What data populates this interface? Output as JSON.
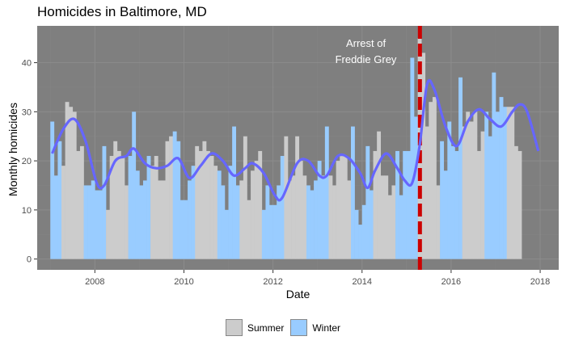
{
  "chart_data": {
    "type": "bar",
    "title": "Homicides in Baltimore, MD",
    "xlabel": "Date",
    "ylabel": "Monthly homicides",
    "xlim": [
      "2006-09-15",
      "2018-06-01"
    ],
    "ylim": [
      -2.2,
      47.5
    ],
    "x_ticks": [
      "2008",
      "2010",
      "2012",
      "2014",
      "2016",
      "2018"
    ],
    "y_ticks": [
      0,
      10,
      20,
      30,
      40
    ],
    "grid": true,
    "legend_position": "bottom",
    "colors": {
      "Summer": "#cccccc",
      "Winter": "#99ccff",
      "trend": "#6666ff",
      "annotation_line": "#cc0000",
      "panel": "#7f7f7f"
    },
    "series": [
      {
        "name": "Summer",
        "description": "bars for months April-September"
      },
      {
        "name": "Winter",
        "description": "bars for months October-March"
      }
    ],
    "monthly": {
      "start": "2007-01",
      "values": [
        28,
        17,
        24,
        19,
        32,
        31,
        30,
        22,
        23,
        15,
        15,
        16,
        14,
        14,
        23,
        10,
        21,
        24,
        22,
        21,
        15,
        21,
        30,
        18,
        15,
        16,
        21,
        19,
        21,
        16,
        16,
        24,
        25,
        26,
        24,
        12,
        12,
        16,
        19,
        23,
        22,
        24,
        22,
        21,
        19,
        18,
        15,
        10,
        19,
        27,
        15,
        16,
        25,
        12,
        18,
        20,
        22,
        10,
        15,
        11,
        11,
        15,
        21,
        25,
        16,
        17,
        25,
        20,
        17,
        15,
        14,
        16,
        20,
        17,
        27,
        17,
        15,
        20,
        21,
        21,
        16,
        27,
        10,
        7,
        11,
        23,
        14,
        22,
        26,
        17,
        17,
        13,
        15,
        22,
        13,
        22,
        22,
        41,
        29,
        45,
        42,
        27,
        32,
        33,
        15,
        24,
        18,
        28,
        23,
        22,
        37,
        27,
        30,
        28,
        30,
        22,
        26,
        30,
        25,
        38,
        30,
        33,
        31,
        31,
        31,
        23,
        22
      ]
    },
    "trend": {
      "name": "smoothed trend",
      "points": [
        [
          "2007-01",
          21.5
        ],
        [
          "2007-04",
          26.5
        ],
        [
          "2007-07",
          28.5
        ],
        [
          "2007-10",
          24.0
        ],
        [
          "2008-01",
          15.5
        ],
        [
          "2008-03",
          15.0
        ],
        [
          "2008-06",
          20.0
        ],
        [
          "2008-09",
          21.0
        ],
        [
          "2008-11",
          22.5
        ],
        [
          "2009-02",
          19.5
        ],
        [
          "2009-05",
          18.5
        ],
        [
          "2009-08",
          19.0
        ],
        [
          "2009-11",
          20.5
        ],
        [
          "2010-02",
          16.5
        ],
        [
          "2010-05",
          19.0
        ],
        [
          "2010-08",
          21.5
        ],
        [
          "2010-11",
          20.0
        ],
        [
          "2011-02",
          17.0
        ],
        [
          "2011-05",
          18.5
        ],
        [
          "2011-07",
          19.5
        ],
        [
          "2011-10",
          17.5
        ],
        [
          "2012-01",
          13.0
        ],
        [
          "2012-03",
          12.5
        ],
        [
          "2012-07",
          19.5
        ],
        [
          "2012-10",
          20.0
        ],
        [
          "2013-01",
          17.0
        ],
        [
          "2013-03",
          17.0
        ],
        [
          "2013-06",
          21.0
        ],
        [
          "2013-09",
          20.5
        ],
        [
          "2013-12",
          17.5
        ],
        [
          "2014-02",
          14.5
        ],
        [
          "2014-04",
          18.0
        ],
        [
          "2014-07",
          21.5
        ],
        [
          "2014-10",
          18.5
        ],
        [
          "2014-12",
          16.0
        ],
        [
          "2015-02",
          15.5
        ],
        [
          "2015-04",
          23.0
        ],
        [
          "2015-06",
          35.5
        ],
        [
          "2015-08",
          34.5
        ],
        [
          "2015-11",
          27.0
        ],
        [
          "2016-02",
          23.0
        ],
        [
          "2016-05",
          28.0
        ],
        [
          "2016-08",
          30.5
        ],
        [
          "2016-11",
          28.5
        ],
        [
          "2017-02",
          27.0
        ],
        [
          "2017-05",
          30.0
        ],
        [
          "2017-07",
          31.5
        ],
        [
          "2017-09",
          30.0
        ],
        [
          "2017-12",
          22.0
        ]
      ]
    },
    "annotation": {
      "event_date": "2015-04-19",
      "text_line1": "Arrest of",
      "text_line2": "Freddie Grey"
    }
  },
  "legend": {
    "summer_label": "Summer",
    "winter_label": "Winter"
  }
}
